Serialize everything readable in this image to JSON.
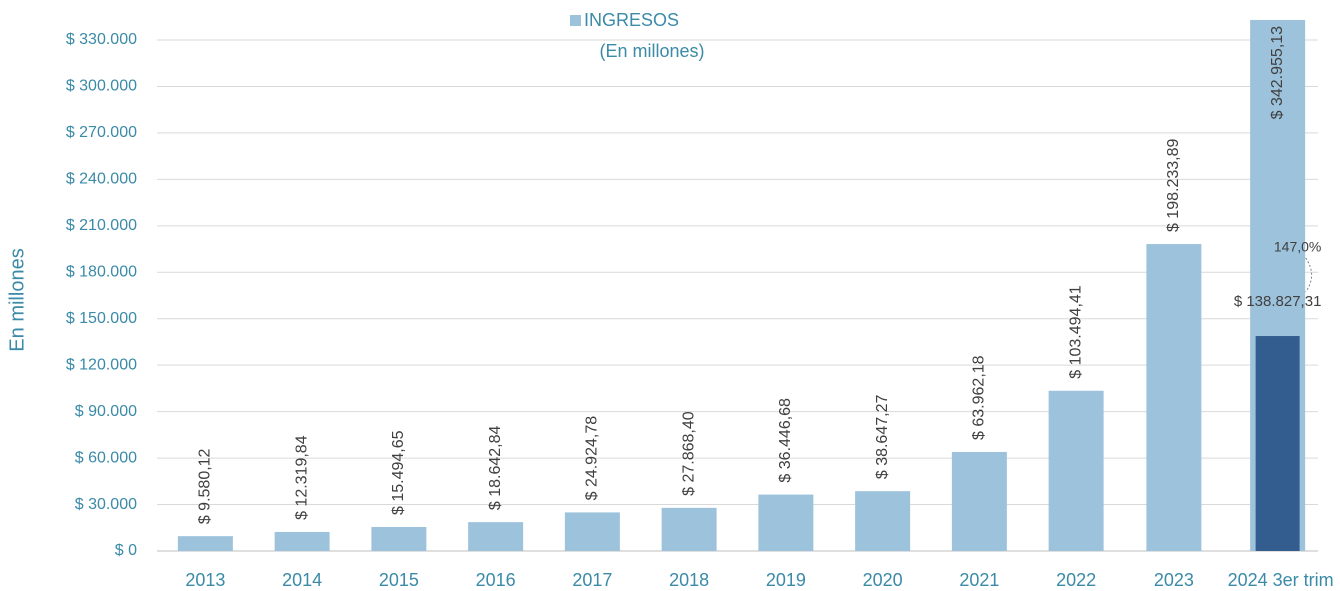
{
  "chart_data": {
    "type": "bar",
    "subtitle": "(En millones)",
    "ylabel": "En millones",
    "categories": [
      "2013",
      "2014",
      "2015",
      "2016",
      "2017",
      "2018",
      "2019",
      "2020",
      "2021",
      "2022",
      "2023",
      "2024 3er trim"
    ],
    "series": [
      {
        "name": "INGRESOS",
        "color": "#9dc3dc",
        "values": [
          9580.12,
          12319.84,
          15494.65,
          18642.84,
          24924.78,
          27868.4,
          36446.68,
          38647.27,
          63962.18,
          103494.41,
          198233.89,
          342955.13
        ],
        "value_labels": [
          "$ 9.580,12",
          "$ 12.319,84",
          "$ 15.494,65",
          "$ 18.642,84",
          "$ 24.924,78",
          "$ 27.868,40",
          "$ 36.446,68",
          "$ 38.647,27",
          "$ 63.962,18",
          "$ 103.494,41",
          "$ 198.233,89",
          "$ 342.955,13"
        ]
      },
      {
        "color": "#335d8e",
        "values": [
          null,
          null,
          null,
          null,
          null,
          null,
          null,
          null,
          null,
          null,
          null,
          138827.31
        ],
        "value_labels": [
          null,
          null,
          null,
          null,
          null,
          null,
          null,
          null,
          null,
          null,
          null,
          "$ 138.827,31"
        ]
      }
    ],
    "annotations": [
      "147,0%"
    ],
    "ylim": [
      0,
      345000
    ],
    "yticks": [
      {
        "value": 0,
        "label": "$ 0"
      },
      {
        "value": 30000,
        "label": "$ 30.000"
      },
      {
        "value": 60000,
        "label": "$ 60.000"
      },
      {
        "value": 90000,
        "label": "$ 90.000"
      },
      {
        "value": 120000,
        "label": "$ 120.000"
      },
      {
        "value": 150000,
        "label": "$ 150.000"
      },
      {
        "value": 180000,
        "label": "$ 180.000"
      },
      {
        "value": 210000,
        "label": "$ 210.000"
      },
      {
        "value": 240000,
        "label": "$ 240.000"
      },
      {
        "value": 270000,
        "label": "$ 270.000"
      },
      {
        "value": 300000,
        "label": "$ 300.000"
      },
      {
        "value": 330000,
        "label": "$ 330.000"
      }
    ],
    "grid": true
  }
}
